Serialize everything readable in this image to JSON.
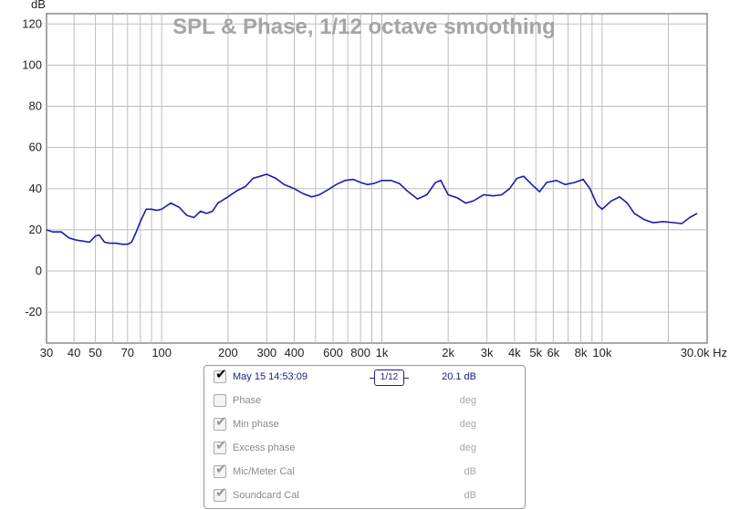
{
  "chart_data": {
    "type": "line",
    "title": "SPL & Phase, 1/12 octave smoothing",
    "y_unit": "dB",
    "x_unit": "Hz",
    "xscale": "log",
    "xlim": [
      30,
      30000
    ],
    "ylim": [
      -35,
      125
    ],
    "grid": true,
    "y_ticks": [
      120,
      100,
      80,
      60,
      40,
      20,
      0,
      -20
    ],
    "x_ticks": [
      {
        "v": 30,
        "label": "30"
      },
      {
        "v": 40,
        "label": "40"
      },
      {
        "v": 50,
        "label": "50"
      },
      {
        "v": 70,
        "label": "70"
      },
      {
        "v": 100,
        "label": "100"
      },
      {
        "v": 200,
        "label": "200"
      },
      {
        "v": 300,
        "label": "300"
      },
      {
        "v": 400,
        "label": "400"
      },
      {
        "v": 600,
        "label": "600"
      },
      {
        "v": 800,
        "label": "800"
      },
      {
        "v": 1000,
        "label": "1k"
      },
      {
        "v": 2000,
        "label": "2k"
      },
      {
        "v": 3000,
        "label": "3k"
      },
      {
        "v": 4000,
        "label": "4k"
      },
      {
        "v": 5000,
        "label": "5k"
      },
      {
        "v": 6000,
        "label": "6k"
      },
      {
        "v": 8000,
        "label": "8k"
      },
      {
        "v": 10000,
        "label": "10k"
      },
      {
        "v": 30000,
        "label": "30.0k Hz"
      }
    ],
    "series": [
      {
        "name": "May 15 14:53:09",
        "color": "#1c1ca8",
        "x": [
          30,
          32,
          35,
          38,
          41,
          44,
          47,
          50,
          52,
          55,
          58,
          62,
          66,
          70,
          73,
          76,
          80,
          85,
          90,
          95,
          100,
          110,
          120,
          130,
          140,
          150,
          160,
          170,
          180,
          200,
          220,
          240,
          260,
          280,
          300,
          330,
          360,
          400,
          440,
          480,
          520,
          560,
          620,
          680,
          740,
          800,
          860,
          920,
          1000,
          1100,
          1200,
          1300,
          1450,
          1600,
          1750,
          1850,
          2000,
          2200,
          2400,
          2600,
          2900,
          3200,
          3500,
          3800,
          4100,
          4400,
          4800,
          5200,
          5600,
          6200,
          6800,
          7500,
          8200,
          8800,
          9500,
          10000,
          11000,
          12000,
          13000,
          14000,
          15500,
          17000,
          19000,
          21000,
          23000,
          25000,
          27000
        ],
        "y": [
          20,
          19,
          19,
          16,
          15,
          14.5,
          14,
          17,
          17.5,
          14,
          13.5,
          13.5,
          13,
          13,
          14,
          18,
          24,
          30,
          30,
          29.5,
          30,
          33,
          31,
          27,
          26,
          29,
          28,
          29,
          33,
          36,
          39,
          41,
          45,
          46,
          47,
          45,
          42,
          40,
          37.5,
          36,
          37,
          39,
          42,
          44,
          44.5,
          43,
          42,
          42.5,
          44,
          44,
          42.5,
          39,
          35,
          37,
          43,
          44,
          37,
          35.5,
          33,
          34,
          37,
          36.5,
          37,
          40,
          45,
          46,
          42,
          38.5,
          43,
          44,
          42,
          43,
          44.5,
          40,
          32,
          30,
          34,
          36,
          33,
          28,
          25,
          23.5,
          24,
          23.5,
          23,
          26,
          28
        ]
      }
    ]
  },
  "legend": {
    "measurement": {
      "checked": true,
      "label": "May 15 14:53:09",
      "smoothing": "1/12",
      "value": "20.1 dB"
    },
    "rows": [
      {
        "checked": false,
        "label": "Phase",
        "value": "deg"
      },
      {
        "checked": true,
        "label": "Min phase",
        "value": "deg"
      },
      {
        "checked": true,
        "label": "Excess phase",
        "value": "deg"
      },
      {
        "checked": true,
        "label": "Mic/Meter Cal",
        "value": "dB"
      },
      {
        "checked": true,
        "label": "Soundcard Cal",
        "value": "dB"
      }
    ]
  }
}
